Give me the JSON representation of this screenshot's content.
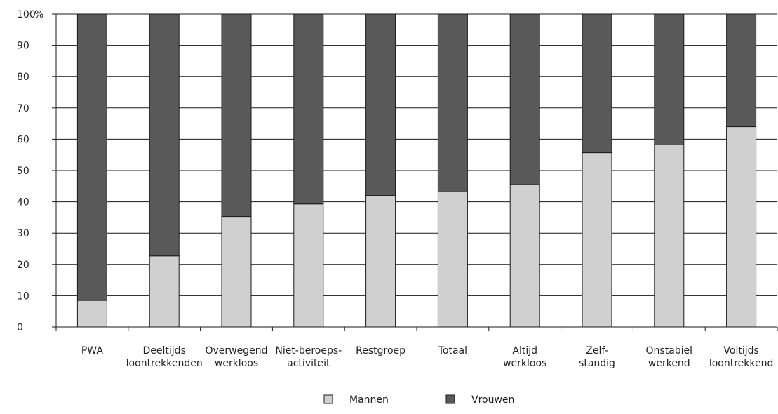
{
  "chart_data": {
    "type": "bar",
    "stacked": true,
    "categories": [
      [
        "PWA"
      ],
      [
        "Deeltijds",
        "loontrekkenden"
      ],
      [
        "Overwegend",
        "werkloos"
      ],
      [
        "Niet-beroeps-",
        "activiteit"
      ],
      [
        "Restgroep"
      ],
      [
        "Totaal"
      ],
      [
        "Altijd",
        "werkloos"
      ],
      [
        "Zelf-",
        "standig"
      ],
      [
        "Onstabiel",
        "werkend"
      ],
      [
        "Voltijds",
        "loontrekkend"
      ]
    ],
    "series": [
      {
        "name": "Mannen",
        "color": "#d0d0d0",
        "values": [
          8.5,
          22.7,
          35.3,
          39.3,
          42.0,
          43.2,
          45.5,
          55.7,
          58.2,
          64.0
        ]
      },
      {
        "name": "Vrouwen",
        "color": "#595959",
        "values": [
          91.5,
          77.3,
          64.7,
          60.7,
          58.0,
          56.8,
          54.5,
          44.3,
          41.8,
          36.0
        ]
      }
    ],
    "ylim": [
      0,
      100
    ],
    "yticks": [
      0,
      10,
      20,
      30,
      40,
      50,
      60,
      70,
      80,
      90,
      100
    ],
    "yunit": "%",
    "grid": true,
    "legend": "bottom-center"
  }
}
